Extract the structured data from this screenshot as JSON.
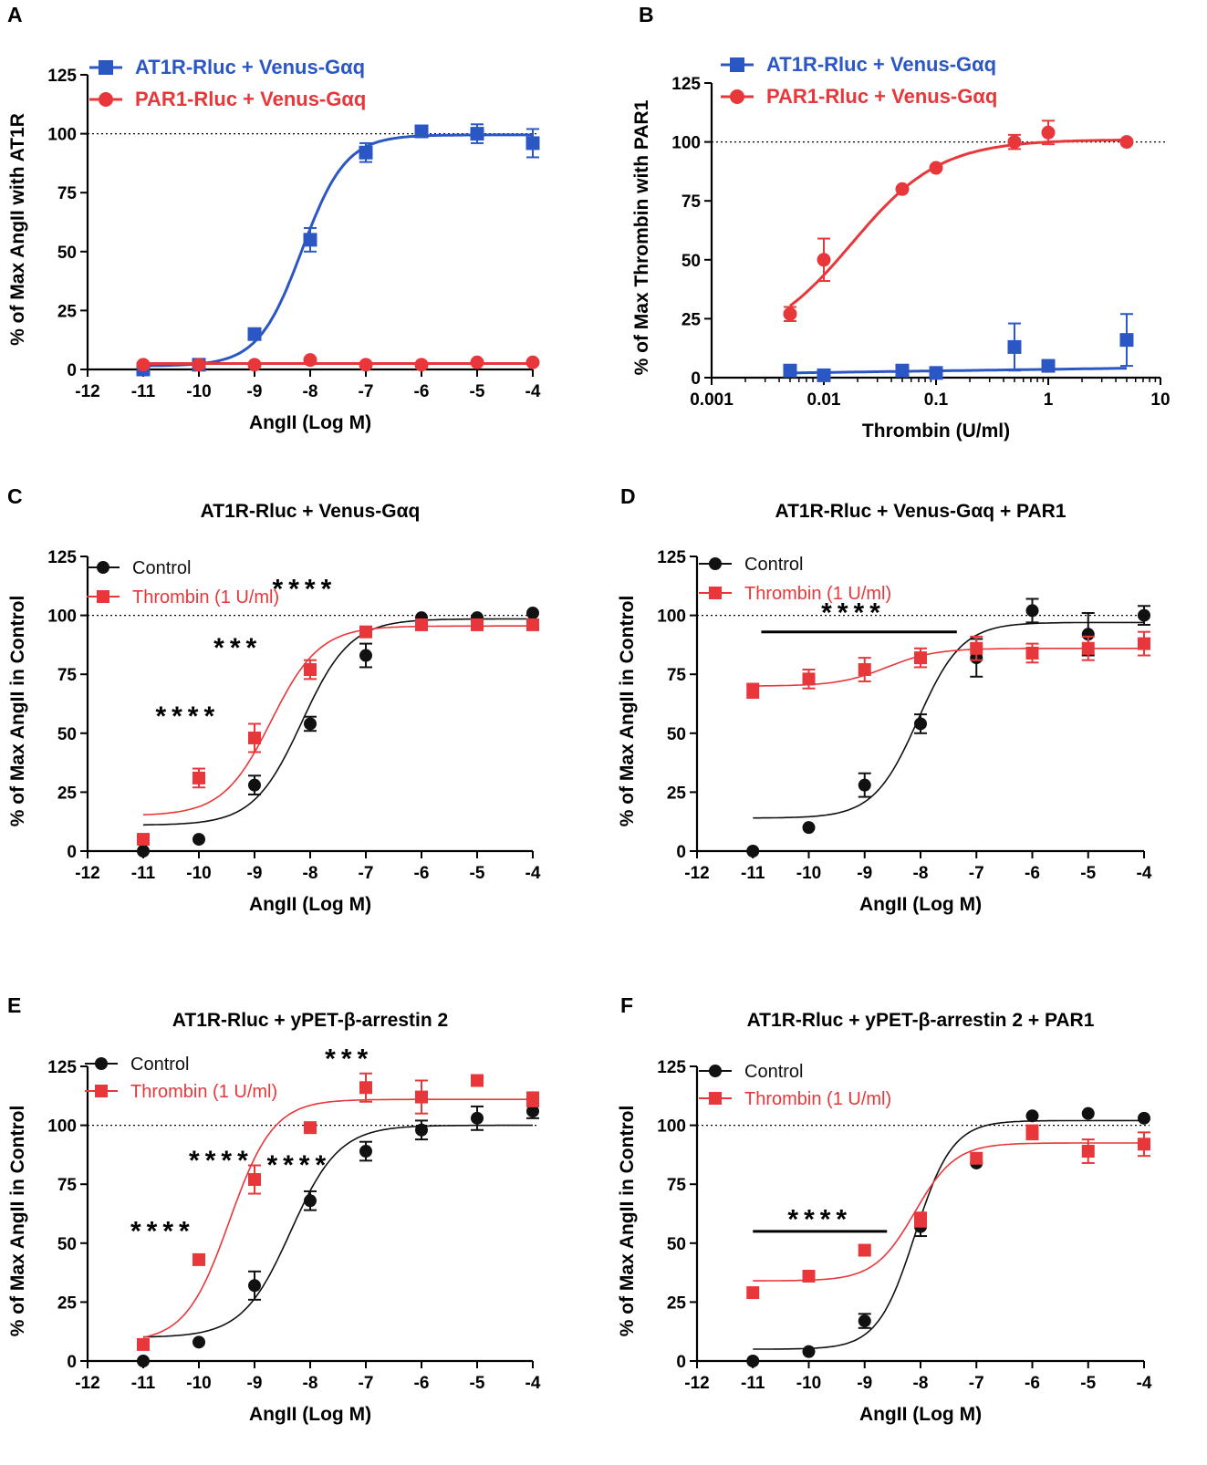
{
  "chart_data": [
    {
      "panel": "A",
      "type": "line",
      "title": "",
      "xlabel": "AngII (Log M)",
      "ylabel": "% of Max AngII with AT1R",
      "xlim": [
        -12,
        -4
      ],
      "ylim": [
        0,
        125
      ],
      "x_scale": "linear",
      "xticks": [
        -12,
        -11,
        -10,
        -9,
        -8,
        -7,
        -6,
        -5,
        -4
      ],
      "xtick_labels": [
        "-12",
        "-11",
        "-10",
        "-9",
        "-8",
        "-7",
        "-6",
        "-5",
        "-4"
      ],
      "yticks": [
        0,
        25,
        50,
        75,
        100,
        125
      ],
      "ytick_labels": [
        "0",
        "25",
        "50",
        "75",
        "100",
        "125"
      ],
      "reference_line": 100,
      "legend_style": "big",
      "legend_position": "top-left",
      "series": [
        {
          "name": "AT1R-Rluc + Venus-Gαq",
          "color": "#2b57c4",
          "marker": "square",
          "x": [
            -11,
            -10,
            -9,
            -8,
            -7,
            -6,
            -5,
            -4
          ],
          "y": [
            0,
            2,
            15,
            55,
            92,
            101,
            100,
            96
          ],
          "err": [
            0,
            0,
            2,
            5,
            4,
            2,
            4,
            6
          ],
          "fit": {
            "bottom": 1.5,
            "top": 99.5,
            "mid": -8.15,
            "slope": 1.1
          }
        },
        {
          "name": "PAR1-Rluc + Venus-Gαq",
          "color": "#e8373a",
          "marker": "circle",
          "x": [
            -11,
            -10,
            -9,
            -8,
            -7,
            -6,
            -5,
            -4
          ],
          "y": [
            2,
            2,
            2,
            4,
            2,
            2,
            3,
            3
          ],
          "err": [
            0,
            0,
            0,
            0,
            0,
            0,
            0,
            0
          ],
          "fit": {
            "flat": 2.5
          }
        }
      ],
      "annotations": []
    },
    {
      "panel": "B",
      "type": "line",
      "title": "",
      "xlabel": "Thrombin (U/ml)",
      "ylabel": "% of Max Thrombin with PAR1",
      "xlim": [
        0.001,
        10
      ],
      "ylim": [
        0,
        125
      ],
      "x_scale": "log",
      "xticks": [
        0.001,
        0.01,
        0.1,
        1,
        10
      ],
      "xtick_labels": [
        "0.001",
        "0.01",
        "0.1",
        "1",
        "10"
      ],
      "yticks": [
        0,
        25,
        50,
        75,
        100,
        125
      ],
      "ytick_labels": [
        "0",
        "25",
        "50",
        "75",
        "100",
        "125"
      ],
      "reference_line": 100,
      "legend_style": "big",
      "legend_position": "top-left",
      "series": [
        {
          "name": "AT1R-Rluc + Venus-Gαq",
          "color": "#2b57c4",
          "marker": "square",
          "x": [
            0.005,
            0.01,
            0.05,
            0.1,
            0.5,
            1,
            5
          ],
          "y": [
            3,
            1,
            3,
            2,
            13,
            5,
            16
          ],
          "err": [
            0,
            0,
            0,
            0,
            10,
            0,
            11
          ],
          "fit": {
            "log_linear": [
              2,
              4
            ]
          }
        },
        {
          "name": "PAR1-Rluc + Venus-Gαq",
          "color": "#e8373a",
          "marker": "circle",
          "x": [
            0.005,
            0.01,
            0.05,
            0.1,
            0.5,
            1,
            5
          ],
          "y": [
            27,
            50,
            80,
            89,
            100,
            104,
            100
          ],
          "err": [
            3,
            9,
            0,
            0,
            3,
            5,
            0
          ],
          "fit": {
            "bottom": 13,
            "top": 101,
            "mid": -1.75,
            "slope": 1.1
          }
        }
      ],
      "annotations": []
    },
    {
      "panel": "C",
      "type": "line",
      "title": "AT1R-Rluc + Venus-Gαq",
      "xlabel": "AngII (Log M)",
      "ylabel": "% of Max AngII in Control",
      "xlim": [
        -12,
        -4
      ],
      "ylim": [
        0,
        125
      ],
      "x_scale": "linear",
      "xticks": [
        -12,
        -11,
        -10,
        -9,
        -8,
        -7,
        -6,
        -5,
        -4
      ],
      "xtick_labels": [
        "-12",
        "-11",
        "-10",
        "-9",
        "-8",
        "-7",
        "-6",
        "-5",
        "-4"
      ],
      "yticks": [
        0,
        25,
        50,
        75,
        100,
        125
      ],
      "ytick_labels": [
        "0",
        "25",
        "50",
        "75",
        "100",
        "125"
      ],
      "reference_line": 100,
      "legend_style": "small",
      "legend_position": "top-left",
      "series": [
        {
          "name": "Control",
          "color": "#111111",
          "marker": "circle",
          "x": [
            -11,
            -10,
            -9,
            -8,
            -7,
            -6,
            -5,
            -4
          ],
          "y": [
            0,
            5,
            28,
            54,
            83,
            99,
            99,
            101
          ],
          "err": [
            0,
            0,
            4,
            3,
            5,
            0,
            0,
            0
          ],
          "fit": {
            "bottom": 11,
            "top": 98.5,
            "mid": -8.15,
            "slope": 1.0
          }
        },
        {
          "name": "Thrombin (1 U/ml)",
          "color": "#e8373a",
          "marker": "square",
          "x": [
            -11,
            -10,
            -9,
            -8,
            -7,
            -6,
            -5,
            -4
          ],
          "y": [
            5,
            31,
            48,
            77,
            93,
            96,
            96,
            96
          ],
          "err": [
            0,
            4,
            6,
            4,
            0,
            0,
            0,
            0
          ],
          "fit": {
            "bottom": 15,
            "top": 95.5,
            "mid": -8.7,
            "slope": 1.0
          }
        }
      ],
      "annotations": [
        {
          "text": "****",
          "x": -8.1,
          "y": 112
        },
        {
          "text": "***",
          "x": -9.3,
          "y": 87
        },
        {
          "text": "****",
          "x": -10.2,
          "y": 58
        }
      ]
    },
    {
      "panel": "D",
      "type": "line",
      "title": "AT1R-Rluc + Venus-Gαq + PAR1",
      "xlabel": "AngII (Log M)",
      "ylabel": "% of Max AngII in Control",
      "xlim": [
        -12,
        -4
      ],
      "ylim": [
        0,
        125
      ],
      "x_scale": "linear",
      "xticks": [
        -12,
        -11,
        -10,
        -9,
        -8,
        -7,
        -6,
        -5,
        -4
      ],
      "xtick_labels": [
        "-12",
        "-11",
        "-10",
        "-9",
        "-8",
        "-7",
        "-6",
        "-5",
        "-4"
      ],
      "yticks": [
        0,
        25,
        50,
        75,
        100,
        125
      ],
      "ytick_labels": [
        "0",
        "25",
        "50",
        "75",
        "100",
        "125"
      ],
      "reference_line": 100,
      "legend_style": "small",
      "legend_position": "top-left",
      "series": [
        {
          "name": "Control",
          "color": "#111111",
          "marker": "circle",
          "x": [
            -11,
            -10,
            -9,
            -8,
            -7,
            -6,
            -5,
            -4
          ],
          "y": [
            0,
            10,
            28,
            54,
            82,
            102,
            92,
            100
          ],
          "err": [
            0,
            0,
            5,
            4,
            8,
            5,
            9,
            4
          ],
          "fit": {
            "bottom": 14,
            "top": 97,
            "mid": -8.05,
            "slope": 1.1
          }
        },
        {
          "name": "Thrombin (1 U/ml)",
          "color": "#e8373a",
          "marker": "square",
          "x": [
            -11,
            -10,
            -9,
            -8,
            -7,
            -6,
            -5,
            -4
          ],
          "y": [
            68,
            73,
            77,
            82,
            86,
            84,
            86,
            88
          ],
          "err": [
            3,
            4,
            5,
            4,
            5,
            4,
            5,
            5
          ],
          "fit": {
            "bottom": 70,
            "top": 86,
            "mid": -8.6,
            "slope": 1.0
          }
        }
      ],
      "annotations": [
        {
          "text": "****",
          "x": -9.2,
          "y": 102,
          "bar": [
            -10.85,
            -7.35
          ],
          "bar_y": 93
        }
      ]
    },
    {
      "panel": "E",
      "type": "line",
      "title": "AT1R-Rluc + yPET-β-arrestin 2",
      "xlabel": "AngII (Log M)",
      "ylabel": "% of Max AngII in Control",
      "xlim": [
        -12,
        -4
      ],
      "ylim": [
        0,
        125
      ],
      "x_scale": "linear",
      "xticks": [
        -12,
        -11,
        -10,
        -9,
        -8,
        -7,
        -6,
        -5,
        -4
      ],
      "xtick_labels": [
        "-12",
        "-11",
        "-10",
        "-9",
        "-8",
        "-7",
        "-6",
        "-5",
        "-4"
      ],
      "yticks": [
        0,
        25,
        50,
        75,
        100,
        125
      ],
      "ytick_labels": [
        "0",
        "25",
        "50",
        "75",
        "100",
        "125"
      ],
      "reference_line": 100,
      "legend_style": "small",
      "legend_position": "top-left",
      "series": [
        {
          "name": "Control",
          "color": "#111111",
          "marker": "circle",
          "x": [
            -11,
            -10,
            -9,
            -8,
            -7,
            -6,
            -5,
            -4
          ],
          "y": [
            0,
            8,
            32,
            68,
            89,
            98,
            103,
            106
          ],
          "err": [
            0,
            0,
            6,
            4,
            4,
            4,
            5,
            3
          ],
          "fit": {
            "bottom": 10,
            "top": 100,
            "mid": -8.35,
            "slope": 1.0
          }
        },
        {
          "name": "Thrombin (1 U/ml)",
          "color": "#e8373a",
          "marker": "square",
          "x": [
            -11,
            -10,
            -9,
            -8,
            -7,
            -6,
            -5,
            -4
          ],
          "y": [
            7,
            43,
            77,
            99,
            116,
            112,
            119,
            111
          ],
          "err": [
            0,
            0,
            6,
            0,
            6,
            7,
            0,
            3
          ],
          "fit": {
            "bottom": 8,
            "top": 111,
            "mid": -9.45,
            "slope": 1.1
          }
        }
      ],
      "annotations": [
        {
          "text": "***",
          "x": -7.3,
          "y": 129
        },
        {
          "text": "****",
          "x": -9.6,
          "y": 86
        },
        {
          "text": "****",
          "x": -8.2,
          "y": 84
        },
        {
          "text": "****",
          "x": -10.65,
          "y": 56
        }
      ]
    },
    {
      "panel": "F",
      "type": "line",
      "title": "AT1R-Rluc + yPET-β-arrestin 2 + PAR1",
      "xlabel": "AngII (Log M)",
      "ylabel": "% of Max AngII in Control",
      "xlim": [
        -12,
        -4
      ],
      "ylim": [
        0,
        125
      ],
      "x_scale": "linear",
      "xticks": [
        -12,
        -11,
        -10,
        -9,
        -8,
        -7,
        -6,
        -5,
        -4
      ],
      "xtick_labels": [
        "-12",
        "-11",
        "-10",
        "-9",
        "-8",
        "-7",
        "-6",
        "-5",
        "-4"
      ],
      "yticks": [
        0,
        25,
        50,
        75,
        100,
        125
      ],
      "ytick_labels": [
        "0",
        "25",
        "50",
        "75",
        "100",
        "125"
      ],
      "reference_line": 100,
      "legend_style": "small",
      "legend_position": "top-left",
      "series": [
        {
          "name": "Control",
          "color": "#111111",
          "marker": "circle",
          "x": [
            -11,
            -10,
            -9,
            -8,
            -7,
            -6,
            -5,
            -4
          ],
          "y": [
            0,
            4,
            17,
            57,
            84,
            104,
            105,
            103
          ],
          "err": [
            0,
            0,
            3,
            4,
            0,
            0,
            0,
            0
          ],
          "fit": {
            "bottom": 5,
            "top": 102,
            "mid": -8.1,
            "slope": 1.3
          }
        },
        {
          "name": "Thrombin (1 U/ml)",
          "color": "#e8373a",
          "marker": "square",
          "x": [
            -11,
            -10,
            -9,
            -8,
            -7,
            -6,
            -5,
            -4
          ],
          "y": [
            29,
            36,
            47,
            60,
            86,
            97,
            89,
            92
          ],
          "err": [
            0,
            0,
            0,
            3,
            0,
            3,
            5,
            5
          ],
          "fit": {
            "bottom": 34,
            "top": 92.5,
            "mid": -8.1,
            "slope": 1.2
          }
        }
      ],
      "annotations": [
        {
          "text": "****",
          "x": -9.8,
          "y": 61,
          "bar": [
            -11,
            -8.6
          ],
          "bar_y": 55
        }
      ]
    }
  ]
}
